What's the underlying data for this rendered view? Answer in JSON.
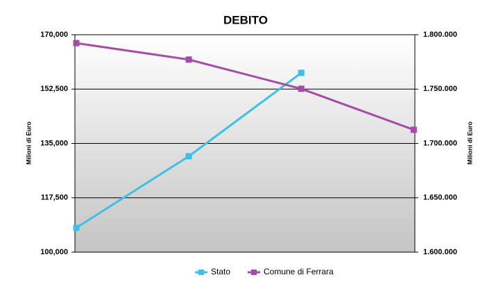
{
  "chart_data": {
    "type": "line",
    "title": "DEBITO",
    "categories": [
      null,
      null,
      null,
      null
    ],
    "y_label": "Milioni di Euro",
    "y2_label": "Milioni di Euro",
    "ylim": [
      100000,
      170000
    ],
    "yticks": [
      {
        "value": 100000,
        "label": "100,000"
      },
      {
        "value": 117500,
        "label": "117,500"
      },
      {
        "value": 135000,
        "label": "135,000"
      },
      {
        "value": 152500,
        "label": "152,500"
      },
      {
        "value": 170000,
        "label": "170,000"
      }
    ],
    "y2lim": [
      1600000,
      1800000
    ],
    "y2ticks": [
      {
        "value": 1600000,
        "label": "1.600.000"
      },
      {
        "value": 1650000,
        "label": "1.650.000"
      },
      {
        "value": 1700000,
        "label": "1.700.000"
      },
      {
        "value": 1750000,
        "label": "1.750.000"
      },
      {
        "value": 1800000,
        "label": "1.800.000"
      }
    ],
    "grid": true,
    "legend": "bottom",
    "series": [
      {
        "name": "Stato",
        "color": "#3cc0e6",
        "axis": "y2",
        "values": [
          1622400,
          1688200,
          1764900,
          null
        ]
      },
      {
        "name": "Comune di Ferrara",
        "color": "#a64ca6",
        "values": [
          167300,
          162000,
          152600,
          139400
        ]
      }
    ]
  }
}
